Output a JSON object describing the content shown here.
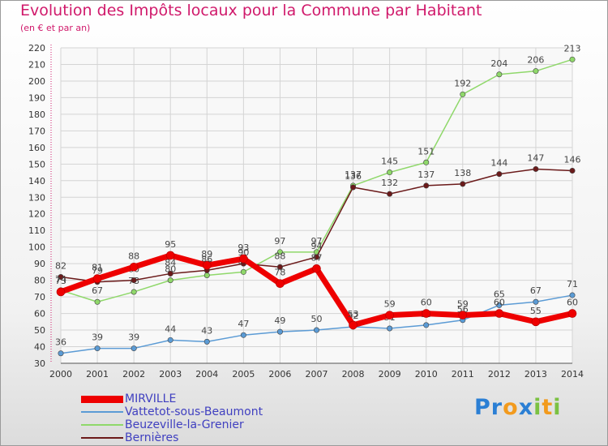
{
  "title": "Evolution des Impôts locaux pour la Commune par Habitant",
  "subtitle": "(en € et par an)",
  "logo": {
    "text": "Proxiti",
    "letters": [
      {
        "ch": "P",
        "color": "#2b7fd4"
      },
      {
        "ch": "r",
        "color": "#2b7fd4"
      },
      {
        "ch": "o",
        "color": "#f29a1d"
      },
      {
        "ch": "x",
        "color": "#2b7fd4"
      },
      {
        "ch": "i",
        "color": "#7bc142"
      },
      {
        "ch": "t",
        "color": "#f29a1d"
      },
      {
        "ch": "i",
        "color": "#7bc142"
      }
    ]
  },
  "chart_data": {
    "type": "line",
    "title": "Evolution des Impôts locaux pour la Commune par Habitant",
    "subtitle": "(en € et par an)",
    "x": [
      "2000",
      "2001",
      "2002",
      "2003",
      "2004",
      "2005",
      "2006",
      "2007",
      "2008",
      "2009",
      "2010",
      "2011",
      "2012",
      "2013",
      "2014"
    ],
    "ylim": [
      30,
      220
    ],
    "yticks": [
      30,
      40,
      50,
      60,
      70,
      80,
      90,
      100,
      110,
      120,
      130,
      140,
      150,
      160,
      170,
      180,
      190,
      200,
      210,
      220
    ],
    "grid": true,
    "legend_position": "bottom-left",
    "series": [
      {
        "name": "MIRVILLE",
        "color": "#ee0000",
        "emphasis": true,
        "values": [
          73,
          81,
          88,
          95,
          89,
          93,
          78,
          87,
          53,
          59,
          60,
          59,
          60,
          55,
          60
        ]
      },
      {
        "name": "Vattetot-sous-Beaumont",
        "color": "#5b9bd5",
        "emphasis": false,
        "values": [
          36,
          39,
          39,
          44,
          43,
          47,
          49,
          50,
          52,
          51,
          53,
          56,
          65,
          67,
          71
        ]
      },
      {
        "name": "Beuzeville-la-Grenier",
        "color": "#8fd86a",
        "emphasis": false,
        "values": [
          74,
          67,
          73,
          80,
          83,
          85,
          97,
          97,
          137,
          145,
          151,
          192,
          204,
          206,
          213
        ]
      },
      {
        "name": "Bernières",
        "color": "#6b1a1a",
        "emphasis": false,
        "values": [
          82,
          79,
          80,
          84,
          86,
          90,
          88,
          94,
          136,
          132,
          137,
          138,
          144,
          147,
          146
        ]
      }
    ]
  }
}
